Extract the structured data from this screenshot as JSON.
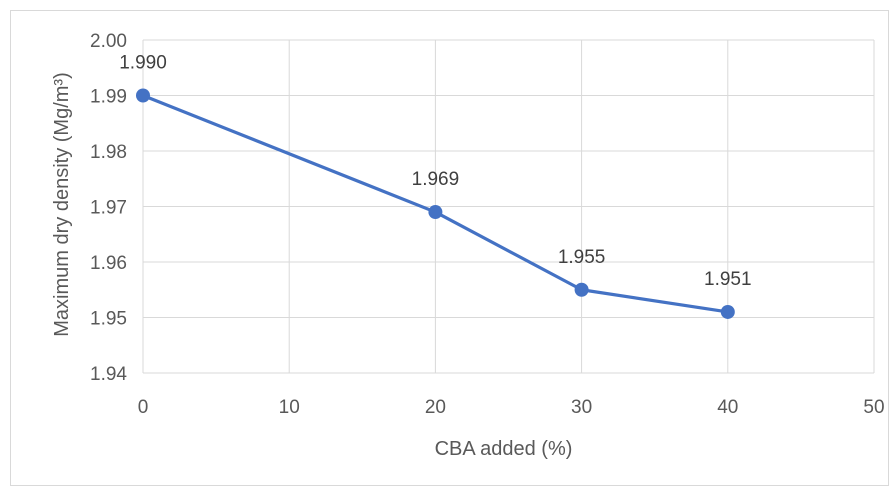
{
  "chart_data": {
    "type": "line",
    "title": "",
    "xlabel": "CBA added (%)",
    "ylabel": "Maximum dry density (Mg/m³)",
    "xlim": [
      0,
      50
    ],
    "ylim": [
      1.94,
      2.0
    ],
    "x_ticks": [
      "0",
      "10",
      "20",
      "30",
      "40",
      "50"
    ],
    "y_ticks": [
      "1.94",
      "1.95",
      "1.96",
      "1.97",
      "1.98",
      "1.99",
      "2.00"
    ],
    "grid": true,
    "legend": "none",
    "series": [
      {
        "x": [
          0,
          20,
          30,
          40
        ],
        "values": [
          1.99,
          1.969,
          1.955,
          1.951
        ],
        "labels": [
          "1.990",
          "1.969",
          "1.955",
          "1.951"
        ],
        "color": "#4472c4"
      }
    ]
  }
}
